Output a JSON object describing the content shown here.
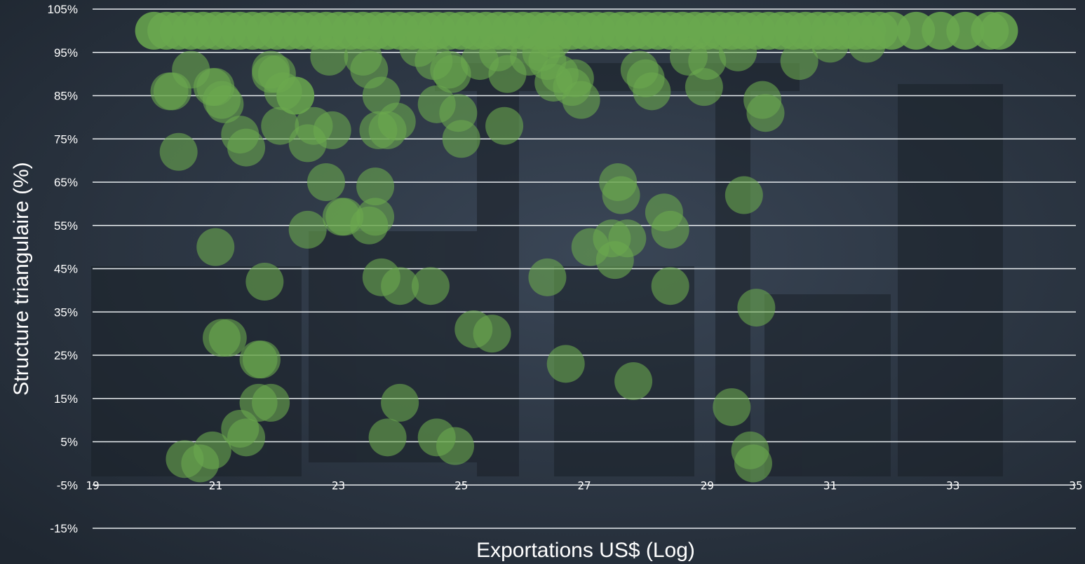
{
  "colors": {
    "background": "#2a3340",
    "gridline": "#e8ecef",
    "point_fill": "#6aa84f",
    "text": "#ffffff"
  },
  "chart_data": {
    "type": "scatter",
    "title": "",
    "xlabel": "Exportations US$ (Log)",
    "ylabel": "Structure triangulaire (%)",
    "xlim": [
      19,
      35
    ],
    "ylim": [
      -15,
      105
    ],
    "x_ticks": [
      "19",
      "21",
      "23",
      "25",
      "27",
      "29",
      "31",
      "33",
      "35"
    ],
    "y_ticks": [
      "-15%",
      "-5%",
      "5%",
      "15%",
      "25%",
      "35%",
      "45%",
      "55%",
      "65%",
      "75%",
      "85%",
      "95%",
      "105%"
    ],
    "grid": "horizontal",
    "legend": "none",
    "series": [
      {
        "x": [
          20.0,
          20.2,
          20.4,
          20.6,
          20.8,
          21.0,
          21.2,
          21.4,
          21.6,
          21.8,
          22.0,
          22.2,
          22.4,
          22.6,
          22.8,
          23.0,
          23.2,
          23.4,
          23.6,
          23.8,
          24.0,
          24.2,
          24.4,
          24.6,
          24.8,
          25.0,
          25.2,
          25.4,
          25.6,
          25.8,
          26.0,
          26.2,
          26.4,
          26.6,
          26.8,
          27.0,
          27.2,
          27.4,
          27.6,
          27.8,
          28.0,
          28.2,
          28.4,
          28.6,
          28.8,
          29.0,
          29.2,
          29.4,
          29.6,
          29.8,
          30.0,
          30.2,
          30.4,
          30.6,
          30.8,
          31.0,
          31.2,
          31.4,
          31.6,
          31.8,
          32.0,
          32.4,
          32.8,
          33.2,
          33.6,
          33.75,
          20.6,
          20.3,
          20.95,
          21.1,
          22.0,
          21.9,
          22.1,
          22.6,
          22.9,
          23.4,
          23.5,
          23.7,
          23.8,
          23.95,
          24.3,
          24.55,
          24.8,
          24.95,
          25.3,
          25.6,
          25.75,
          26.1,
          26.4,
          26.6,
          26.5,
          26.3,
          26.8,
          26.95,
          27.9,
          28.1,
          28.0,
          28.7,
          28.95,
          29.0,
          29.5,
          29.9,
          30.5,
          31.0,
          31.6,
          20.25,
          20.4,
          21.0,
          21.15,
          21.4,
          21.5,
          21.9,
          22.05,
          22.3,
          22.5,
          22.8,
          23.1,
          23.5,
          23.6,
          23.65,
          23.7,
          24.6,
          24.85,
          25.0,
          25.7,
          26.5,
          26.85,
          27.55,
          27.6,
          27.7,
          28.3,
          28.4,
          29.6,
          29.95,
          21.0,
          21.2,
          21.7,
          21.9,
          22.5,
          22.3,
          22.85,
          23.05,
          23.6,
          24.0,
          26.4,
          27.1,
          27.45,
          27.5,
          28.4,
          29.8,
          21.1,
          21.7,
          21.75,
          21.8,
          21.5,
          21.4,
          23.8,
          24.0,
          24.5,
          24.6,
          24.9,
          25.2,
          25.5,
          26.7,
          27.8,
          29.4,
          29.75,
          29.7,
          20.5,
          20.75,
          20.95
        ],
        "y": [
          100,
          100,
          100,
          100,
          100,
          100,
          100,
          100,
          100,
          100,
          100,
          100,
          100,
          100,
          100,
          100,
          100,
          100,
          100,
          100,
          100,
          100,
          100,
          100,
          100,
          100,
          100,
          100,
          100,
          100,
          100,
          100,
          100,
          100,
          100,
          100,
          100,
          100,
          100,
          100,
          100,
          100,
          100,
          100,
          100,
          100,
          100,
          100,
          100,
          100,
          100,
          100,
          100,
          100,
          100,
          100,
          100,
          100,
          100,
          100,
          100,
          100,
          100,
          100,
          100,
          100,
          91,
          86,
          87,
          84,
          90,
          91,
          86,
          78,
          77,
          94,
          91,
          85,
          77,
          79,
          96,
          93,
          91,
          81,
          93,
          95,
          90,
          94,
          93,
          90,
          98,
          95,
          87,
          84,
          91,
          86,
          89,
          94,
          87,
          93,
          95,
          84,
          93,
          97,
          97,
          86,
          72,
          87,
          83,
          76,
          73,
          90,
          78,
          85,
          74,
          65,
          57,
          55,
          64,
          77,
          43,
          83,
          90,
          75,
          78,
          88,
          89,
          65,
          62,
          52,
          58,
          54,
          62,
          81,
          50,
          29,
          24,
          14,
          54,
          85,
          94,
          57,
          57,
          41,
          43,
          50,
          52,
          47,
          41,
          36,
          29,
          14,
          24,
          42,
          6,
          8,
          6,
          14,
          41,
          6,
          4,
          31,
          30,
          23,
          19,
          13,
          0,
          3,
          1,
          0,
          3
        ]
      }
    ]
  }
}
